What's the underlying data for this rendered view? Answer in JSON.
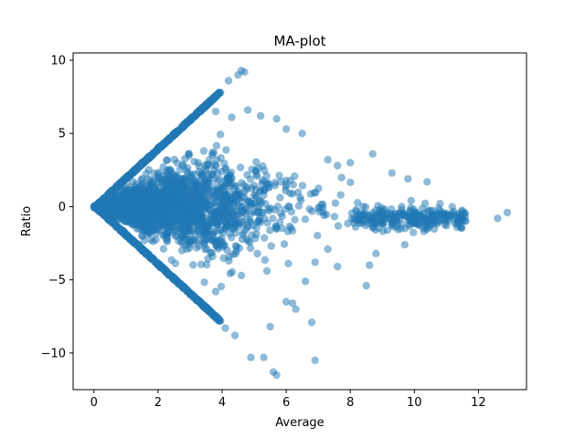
{
  "chart_data": {
    "type": "scatter",
    "title": "MA-plot",
    "xlabel": "Average",
    "ylabel": "Ratio",
    "xlim": [
      -0.65,
      13.5
    ],
    "ylim": [
      -12.5,
      10.5
    ],
    "xticks": [
      0,
      2,
      4,
      6,
      8,
      10,
      12
    ],
    "yticks": [
      -10,
      -5,
      0,
      5,
      10
    ],
    "grid": false,
    "color": "#1f77b4",
    "alpha": 0.5,
    "description_points": [
      [
        4.6,
        9.3
      ],
      [
        4.7,
        9.2
      ],
      [
        4.5,
        9.0
      ],
      [
        4.2,
        8.6
      ],
      [
        3.9,
        7.8
      ],
      [
        3.5,
        6.9
      ],
      [
        3.7,
        7.3
      ],
      [
        3.0,
        6.0
      ],
      [
        2.5,
        5.0
      ],
      [
        2.0,
        4.0
      ],
      [
        1.5,
        3.0
      ],
      [
        1.0,
        2.0
      ],
      [
        0.5,
        1.0
      ],
      [
        0.1,
        0.1
      ],
      [
        0.0,
        0.0
      ],
      [
        0.5,
        -1.0
      ],
      [
        1.0,
        -2.0
      ],
      [
        1.5,
        -3.0
      ],
      [
        2.0,
        -4.0
      ],
      [
        2.5,
        -5.0
      ],
      [
        3.0,
        -6.0
      ],
      [
        3.5,
        -7.0
      ],
      [
        3.9,
        -7.8
      ],
      [
        4.1,
        -8.3
      ],
      [
        4.4,
        -8.8
      ],
      [
        4.9,
        -10.3
      ],
      [
        5.3,
        -10.3
      ],
      [
        5.6,
        -11.3
      ],
      [
        5.7,
        -11.5
      ],
      [
        6.9,
        -10.5
      ],
      [
        5.5,
        -8.2
      ],
      [
        6.3,
        -7.0
      ],
      [
        6.8,
        -7.9
      ],
      [
        6.0,
        -6.5
      ],
      [
        6.2,
        -6.6
      ],
      [
        4.8,
        6.6
      ],
      [
        5.2,
        6.2
      ],
      [
        4.3,
        6.1
      ],
      [
        3.8,
        6.5
      ],
      [
        5.7,
        6.0
      ],
      [
        6.0,
        5.3
      ],
      [
        6.5,
        5.0
      ],
      [
        7.3,
        3.2
      ],
      [
        7.6,
        2.8
      ],
      [
        8.0,
        3.0
      ],
      [
        8.7,
        3.6
      ],
      [
        9.3,
        2.3
      ],
      [
        9.8,
        1.9
      ],
      [
        10.4,
        1.7
      ],
      [
        10.8,
        0.2
      ],
      [
        11.5,
        -0.9
      ],
      [
        12.6,
        -0.8
      ],
      [
        12.9,
        -0.4
      ],
      [
        11.0,
        -1.3
      ],
      [
        10.3,
        -1.7
      ],
      [
        9.7,
        -2.6
      ],
      [
        8.8,
        -3.2
      ],
      [
        8.6,
        -4.0
      ],
      [
        8.5,
        -5.4
      ],
      [
        7.6,
        -4.1
      ],
      [
        7.3,
        -2.9
      ],
      [
        6.9,
        -3.8
      ],
      [
        6.6,
        -5.1
      ],
      [
        5.4,
        -4.4
      ],
      [
        4.6,
        -4.7
      ],
      [
        3.8,
        -5.8
      ],
      [
        7.7,
        0.8
      ],
      [
        8.4,
        0.0
      ],
      [
        9.1,
        -0.5
      ],
      [
        9.6,
        -0.2
      ],
      [
        10.1,
        -0.6
      ],
      [
        10.9,
        -0.4
      ],
      [
        11.3,
        -0.7
      ],
      [
        11.6,
        -1.0
      ],
      [
        9.9,
        0.4
      ]
    ]
  }
}
